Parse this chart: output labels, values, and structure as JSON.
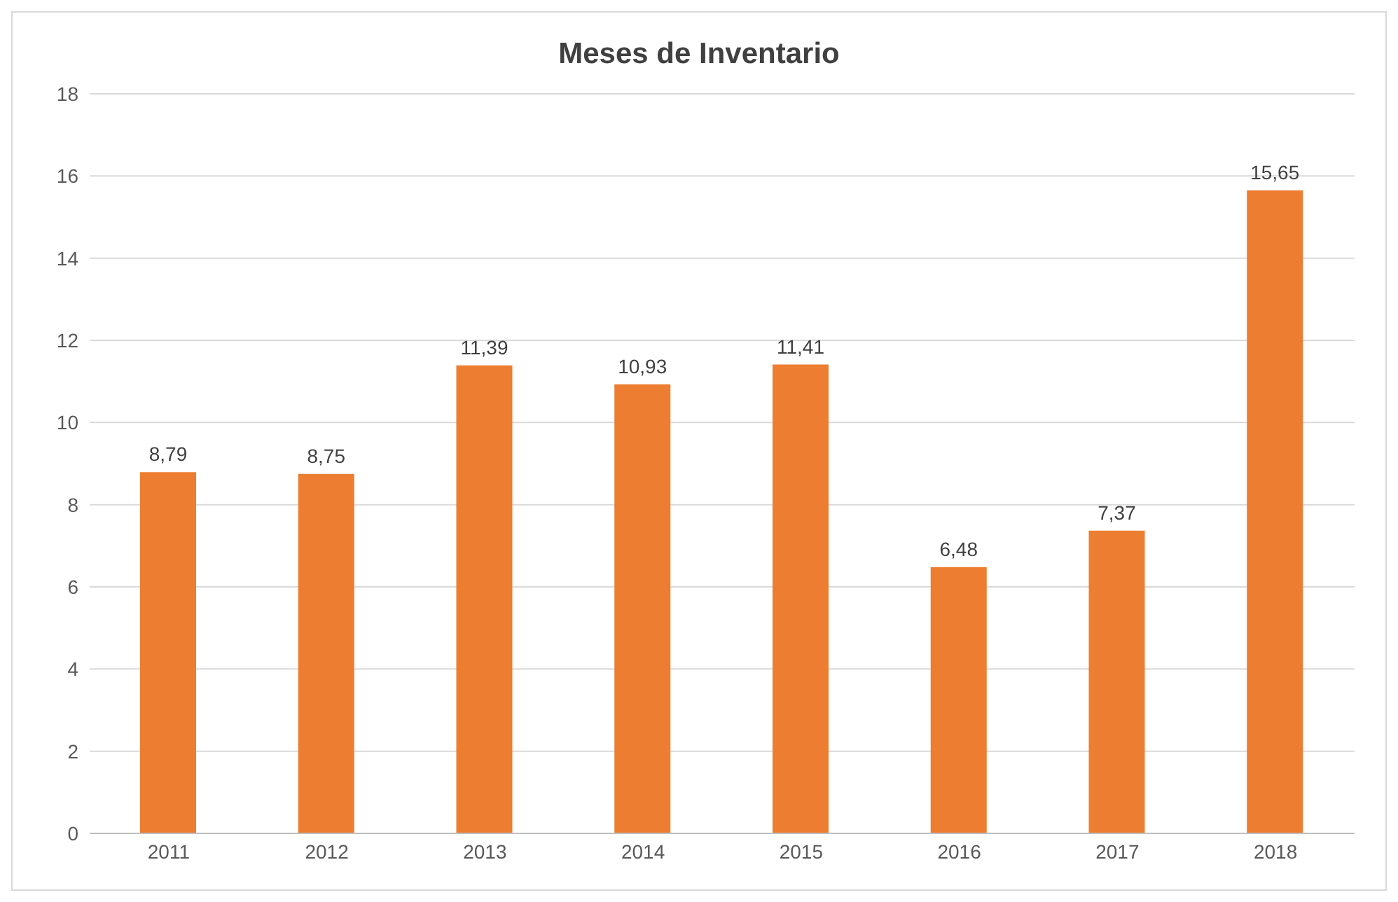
{
  "chart_data": {
    "type": "bar",
    "title": "Meses de Inventario",
    "categories": [
      "2011",
      "2012",
      "2013",
      "2014",
      "2015",
      "2016",
      "2017",
      "2018"
    ],
    "values": [
      8.79,
      8.75,
      11.39,
      10.93,
      11.41,
      6.48,
      7.37,
      15.65
    ],
    "value_labels": [
      "8,79",
      "8,75",
      "11,39",
      "10,93",
      "11,41",
      "6,48",
      "7,37",
      "15,65"
    ],
    "color": "#ed7d31",
    "ylim": [
      0,
      18
    ],
    "yticks": [
      0,
      2,
      4,
      6,
      8,
      10,
      12,
      14,
      16,
      18
    ],
    "grid": "y",
    "legend": false
  }
}
